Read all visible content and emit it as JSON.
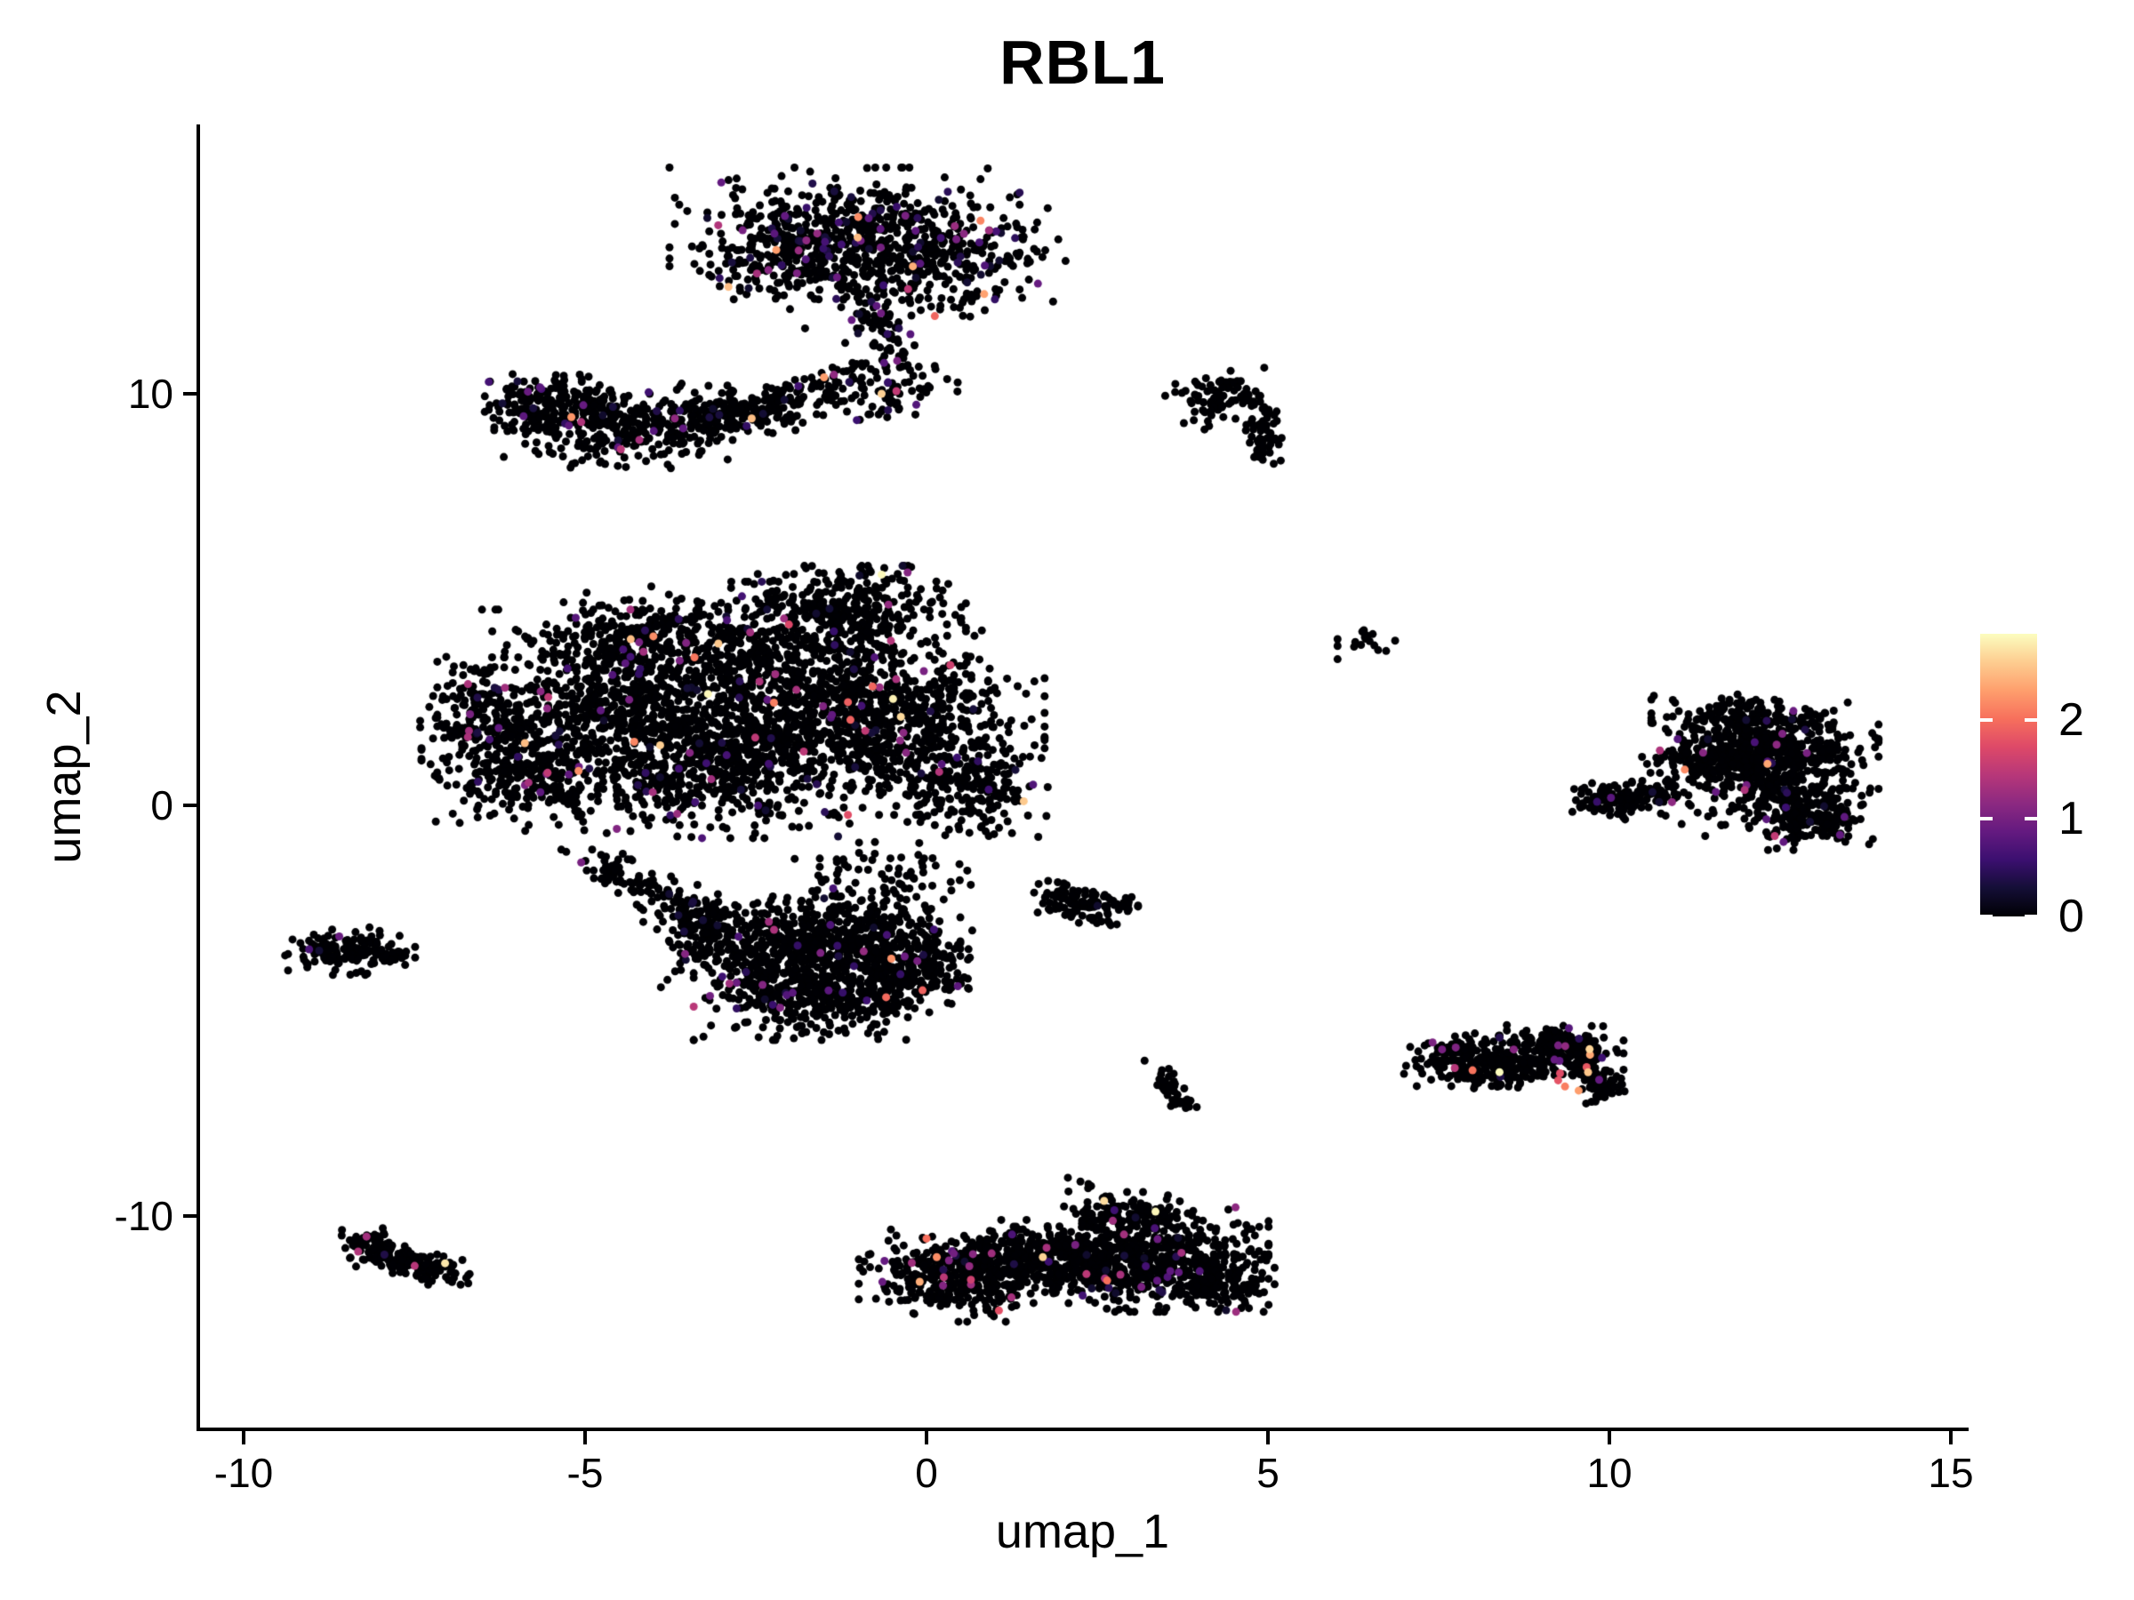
{
  "figure": {
    "background": "#ffffff",
    "axis_color": "#000000",
    "text_color": "#000000"
  },
  "chart_data": {
    "type": "scatter",
    "title": "RBL1",
    "xlabel": "umap_1",
    "ylabel": "umap_2",
    "x_ticks": [
      -10,
      -5,
      0,
      5,
      10,
      15
    ],
    "y_ticks": [
      -10,
      0,
      10
    ],
    "xlim": [
      -10.6,
      15.2
    ],
    "ylim": [
      -14.8,
      16.5
    ],
    "grid": false,
    "legend_position": "right",
    "point_color_default": "#000004",
    "point_radius_px": 4.5,
    "seed": 1337,
    "colorbar": {
      "title": "",
      "ticks": [
        0,
        1,
        2
      ],
      "vmin": 0,
      "vmax": 2.88,
      "colormap": "magma",
      "stops": [
        "#000004",
        "#140e36",
        "#3b0f70",
        "#641a80",
        "#8c2981",
        "#b73779",
        "#de4968",
        "#f7705c",
        "#fe9f6d",
        "#fdcd90",
        "#fcfdbf"
      ]
    },
    "clusters": [
      {
        "name": "top-blob",
        "p_mid": 0.085,
        "p_high": 0.01,
        "lobes": [
          {
            "type": "blob",
            "cx": -1.2,
            "cy": 13.9,
            "rx": 2.4,
            "ry": 1.5,
            "n": 420
          },
          {
            "type": "blob",
            "cx": -0.1,
            "cy": 13.3,
            "rx": 2.0,
            "ry": 1.6,
            "n": 330
          },
          {
            "type": "blob",
            "cx": -2.0,
            "cy": 13.3,
            "rx": 1.2,
            "ry": 1.0,
            "n": 150
          },
          {
            "type": "band",
            "x1": -1.0,
            "y1": 12.3,
            "x2": -0.45,
            "y2": 10.4,
            "cpx": -0.5,
            "cpy": 11.5,
            "w": 0.5,
            "n": 90
          },
          {
            "type": "blob",
            "cx": -0.5,
            "cy": 9.95,
            "rx": 0.95,
            "ry": 0.6,
            "n": 55
          }
        ]
      },
      {
        "name": "upper-left-band",
        "p_mid": 0.04,
        "p_high": 0.003,
        "lobes": [
          {
            "type": "band",
            "x1": -5.9,
            "y1": 9.55,
            "x2": -3.4,
            "y2": 9.25,
            "cpx": -4.7,
            "cpy": 9.0,
            "w": 0.85,
            "n": 400
          },
          {
            "type": "band",
            "x1": -3.4,
            "y1": 9.35,
            "x2": -1.65,
            "y2": 10.05,
            "cpx": -2.5,
            "cpy": 9.45,
            "w": 0.6,
            "n": 210
          },
          {
            "type": "band",
            "x1": -1.55,
            "y1": 10.15,
            "x2": -0.9,
            "y2": 10.7,
            "cpx": -1.2,
            "cpy": 10.4,
            "w": 0.3,
            "n": 35
          },
          {
            "type": "blob",
            "cx": -5.5,
            "cy": 10.0,
            "rx": 1.0,
            "ry": 0.55,
            "n": 80
          }
        ]
      },
      {
        "name": "upper-right-hook",
        "p_mid": 0.008,
        "p_high": 0,
        "lobes": [
          {
            "type": "blob",
            "cx": 4.35,
            "cy": 10.1,
            "rx": 0.8,
            "ry": 0.5,
            "n": 65
          },
          {
            "type": "band",
            "x1": 4.7,
            "y1": 9.9,
            "x2": 4.95,
            "y2": 8.4,
            "cpx": 5.05,
            "cpy": 9.2,
            "w": 0.25,
            "n": 65
          },
          {
            "type": "blob",
            "cx": 4.1,
            "cy": 9.55,
            "rx": 0.5,
            "ry": 0.45,
            "n": 20
          }
        ]
      },
      {
        "name": "tiny-mid-right",
        "p_mid": 0,
        "p_high": 0,
        "lobes": [
          {
            "type": "blob",
            "cx": 6.5,
            "cy": 3.95,
            "rx": 0.45,
            "ry": 0.38,
            "n": 17
          }
        ]
      },
      {
        "name": "central-large",
        "p_mid": 0.032,
        "p_high": 0.0035,
        "lobes": [
          {
            "type": "blob",
            "cx": -4.6,
            "cy": 2.4,
            "rx": 2.4,
            "ry": 2.2,
            "n": 650
          },
          {
            "type": "blob",
            "cx": -2.2,
            "cy": 3.4,
            "rx": 2.6,
            "ry": 1.9,
            "n": 650
          },
          {
            "type": "blob",
            "cx": -0.3,
            "cy": 2.0,
            "rx": 1.9,
            "ry": 2.1,
            "n": 520
          },
          {
            "type": "blob",
            "cx": -3.2,
            "cy": 0.9,
            "rx": 2.4,
            "ry": 1.6,
            "n": 560
          },
          {
            "type": "blob",
            "cx": -5.9,
            "cy": 0.7,
            "rx": 1.4,
            "ry": 1.3,
            "n": 260
          },
          {
            "type": "blob",
            "cx": -1.2,
            "cy": 4.8,
            "rx": 1.6,
            "ry": 0.95,
            "n": 240
          },
          {
            "type": "blob",
            "cx": -4.2,
            "cy": 4.0,
            "rx": 1.7,
            "ry": 0.95,
            "n": 240
          },
          {
            "type": "blob",
            "cx": -6.4,
            "cy": 2.2,
            "rx": 0.95,
            "ry": 1.3,
            "n": 180
          },
          {
            "type": "blob",
            "cx": 0.6,
            "cy": 0.4,
            "rx": 1.1,
            "ry": 1.2,
            "n": 190
          },
          {
            "type": "blob",
            "cx": -1.8,
            "cy": 1.8,
            "rx": 2.3,
            "ry": 1.7,
            "n": 330
          },
          {
            "type": "band",
            "x1": -4.9,
            "y1": -1.2,
            "x2": -3.6,
            "y2": -2.3,
            "cpx": -4.4,
            "cpy": -1.9,
            "w": 0.4,
            "n": 90
          },
          {
            "type": "band",
            "x1": -1.4,
            "y1": -1.4,
            "x2": 0.3,
            "y2": -2.0,
            "cpx": -0.6,
            "cpy": -1.8,
            "w": 0.8,
            "n": 70
          }
        ]
      },
      {
        "name": "central-lower",
        "p_mid": 0.028,
        "p_high": 0.002,
        "lobes": [
          {
            "type": "blob",
            "cx": -2.4,
            "cy": -3.4,
            "rx": 1.5,
            "ry": 1.15,
            "n": 360
          },
          {
            "type": "blob",
            "cx": -1.0,
            "cy": -3.1,
            "rx": 1.4,
            "ry": 1.0,
            "n": 330
          },
          {
            "type": "blob",
            "cx": -1.7,
            "cy": -4.6,
            "rx": 1.6,
            "ry": 1.05,
            "n": 400
          },
          {
            "type": "blob",
            "cx": -0.25,
            "cy": -4.1,
            "rx": 1.0,
            "ry": 1.0,
            "n": 230
          },
          {
            "type": "blob",
            "cx": -3.4,
            "cy": -2.75,
            "rx": 0.7,
            "ry": 0.55,
            "n": 90
          }
        ]
      },
      {
        "name": "small-mid",
        "p_mid": 0.005,
        "p_high": 0,
        "lobes": [
          {
            "type": "blob",
            "cx": 2.35,
            "cy": -2.5,
            "rx": 0.7,
            "ry": 0.5,
            "n": 90
          },
          {
            "type": "blob",
            "cx": 1.95,
            "cy": -2.15,
            "rx": 0.35,
            "ry": 0.3,
            "n": 25
          }
        ]
      },
      {
        "name": "left-small",
        "p_mid": 0.012,
        "p_high": 0,
        "lobes": [
          {
            "type": "blob",
            "cx": -8.45,
            "cy": -3.55,
            "rx": 0.9,
            "ry": 0.55,
            "n": 150
          },
          {
            "type": "blob",
            "cx": -7.75,
            "cy": -3.65,
            "rx": 0.35,
            "ry": 0.2,
            "n": 10
          }
        ]
      },
      {
        "name": "tiny-lower-mid",
        "p_mid": 0,
        "p_high": 0,
        "lobes": [
          {
            "type": "band",
            "x1": 3.45,
            "y1": -6.4,
            "x2": 3.8,
            "y2": -7.35,
            "cpx": 3.5,
            "cpy": -6.9,
            "w": 0.22,
            "n": 42
          }
        ]
      },
      {
        "name": "lower-right-pair",
        "p_mid": 0.025,
        "p_high": 0.006,
        "lobes": [
          {
            "type": "blob",
            "cx": 7.9,
            "cy": -6.2,
            "rx": 0.85,
            "ry": 0.6,
            "n": 190
          },
          {
            "type": "blob",
            "cx": 8.45,
            "cy": -6.5,
            "rx": 0.55,
            "ry": 0.4,
            "n": 70
          },
          {
            "type": "blob",
            "cx": 9.3,
            "cy": -5.95,
            "rx": 0.85,
            "ry": 0.6,
            "n": 210
          },
          {
            "type": "band",
            "x1": 9.6,
            "y1": -6.4,
            "x2": 9.95,
            "y2": -7.05,
            "cpx": 9.85,
            "cpy": -6.6,
            "w": 0.3,
            "n": 90
          },
          {
            "type": "blob",
            "cx": 8.85,
            "cy": -6.35,
            "rx": 0.4,
            "ry": 0.3,
            "n": 30
          }
        ]
      },
      {
        "name": "bottom-left",
        "p_mid": 0.01,
        "p_high": 0,
        "lobes": [
          {
            "type": "band",
            "x1": -8.3,
            "y1": -10.5,
            "x2": -6.95,
            "y2": -11.35,
            "cpx": -7.9,
            "cpy": -11.2,
            "w": 0.38,
            "n": 195
          }
        ]
      },
      {
        "name": "bottom-dumbbell",
        "p_mid": 0.03,
        "p_high": 0.004,
        "lobes": [
          {
            "type": "blob",
            "cx": 0.45,
            "cy": -11.45,
            "rx": 1.35,
            "ry": 1.05,
            "n": 400
          },
          {
            "type": "blob",
            "cx": 1.35,
            "cy": -10.95,
            "rx": 0.95,
            "ry": 0.8,
            "n": 170
          },
          {
            "type": "band",
            "x1": 1.8,
            "y1": -11.35,
            "x2": 2.6,
            "y2": -11.05,
            "cpx": 2.2,
            "cpy": -11.2,
            "w": 0.55,
            "n": 150
          },
          {
            "type": "blob",
            "cx": 3.3,
            "cy": -11.05,
            "rx": 1.6,
            "ry": 1.2,
            "n": 620
          },
          {
            "type": "blob",
            "cx": 2.95,
            "cy": -9.95,
            "rx": 0.85,
            "ry": 0.5,
            "n": 110
          },
          {
            "type": "blob",
            "cx": 4.35,
            "cy": -11.6,
            "rx": 0.7,
            "ry": 0.6,
            "n": 110
          },
          {
            "type": "blob",
            "cx": 2.3,
            "cy": -9.35,
            "rx": 0.35,
            "ry": 0.28,
            "n": 6
          }
        ]
      },
      {
        "name": "right-large",
        "p_mid": 0.028,
        "p_high": 0.002,
        "lobes": [
          {
            "type": "band",
            "x1": 9.6,
            "y1": 0.1,
            "x2": 10.9,
            "y2": 0.4,
            "cpx": 10.2,
            "cpy": 0.05,
            "w": 0.4,
            "n": 150
          },
          {
            "type": "blob",
            "cx": 11.6,
            "cy": 1.3,
            "rx": 1.05,
            "ry": 0.95,
            "n": 240
          },
          {
            "type": "blob",
            "cx": 12.5,
            "cy": 0.9,
            "rx": 1.35,
            "ry": 1.55,
            "n": 520
          },
          {
            "type": "blob",
            "cx": 12.95,
            "cy": -0.35,
            "rx": 0.85,
            "ry": 0.7,
            "n": 170
          },
          {
            "type": "blob",
            "cx": 11.95,
            "cy": 2.1,
            "rx": 1.25,
            "ry": 0.55,
            "n": 140
          }
        ]
      }
    ],
    "highlight_points": [
      {
        "x": -2.2,
        "y": 13.5,
        "v": 2.3
      },
      {
        "x": -1.0,
        "y": 14.3,
        "v": 2.2
      },
      {
        "x": -0.2,
        "y": 13.1,
        "v": 2.4
      },
      {
        "x": -2.9,
        "y": 12.6,
        "v": 2.5
      },
      {
        "x": -3.05,
        "y": 14.1,
        "v": 1.4
      },
      {
        "x": -1.6,
        "y": 13.9,
        "v": 1.2
      },
      {
        "x": -2.56,
        "y": 9.4,
        "v": 2.5
      },
      {
        "x": -1.5,
        "y": 10.4,
        "v": 2.3
      },
      {
        "x": -3.2,
        "y": 2.7,
        "v": 2.85
      },
      {
        "x": -3.9,
        "y": 1.45,
        "v": 2.6
      },
      {
        "x": -4.0,
        "y": 4.1,
        "v": 2.2
      },
      {
        "x": -1.15,
        "y": 2.5,
        "v": 1.9
      },
      {
        "x": 0.35,
        "y": 3.4,
        "v": 1.6
      },
      {
        "x": -6.7,
        "y": 1.8,
        "v": 1.3
      },
      {
        "x": 9.35,
        "y": -6.85,
        "v": 2.1
      },
      {
        "x": 9.55,
        "y": -6.95,
        "v": 2.3
      },
      {
        "x": 9.25,
        "y": -6.7,
        "v": 1.8
      },
      {
        "x": -7.05,
        "y": -11.15,
        "v": 2.75
      },
      {
        "x": -8.2,
        "y": -10.5,
        "v": 1.3
      },
      {
        "x": 0.15,
        "y": -11.0,
        "v": 2.2
      },
      {
        "x": -0.1,
        "y": -11.6,
        "v": 2.4
      },
      {
        "x": 0.0,
        "y": -10.55,
        "v": 2.0
      },
      {
        "x": 0.65,
        "y": -11.55,
        "v": 1.6
      },
      {
        "x": -8.6,
        "y": -3.2,
        "v": 0.9
      },
      {
        "x": 7.55,
        "y": -5.95,
        "v": 1.0
      },
      {
        "x": 7.75,
        "y": -5.9,
        "v": 1.05
      },
      {
        "x": 8.6,
        "y": -5.95,
        "v": 1.1
      },
      {
        "x": 9.25,
        "y": -5.85,
        "v": 1.0
      },
      {
        "x": 12.55,
        "y": -0.9,
        "v": 0.85
      },
      {
        "x": 12.3,
        "y": -0.35,
        "v": 0.8
      },
      {
        "x": 11.0,
        "y": 1.6,
        "v": 0.75
      }
    ]
  }
}
